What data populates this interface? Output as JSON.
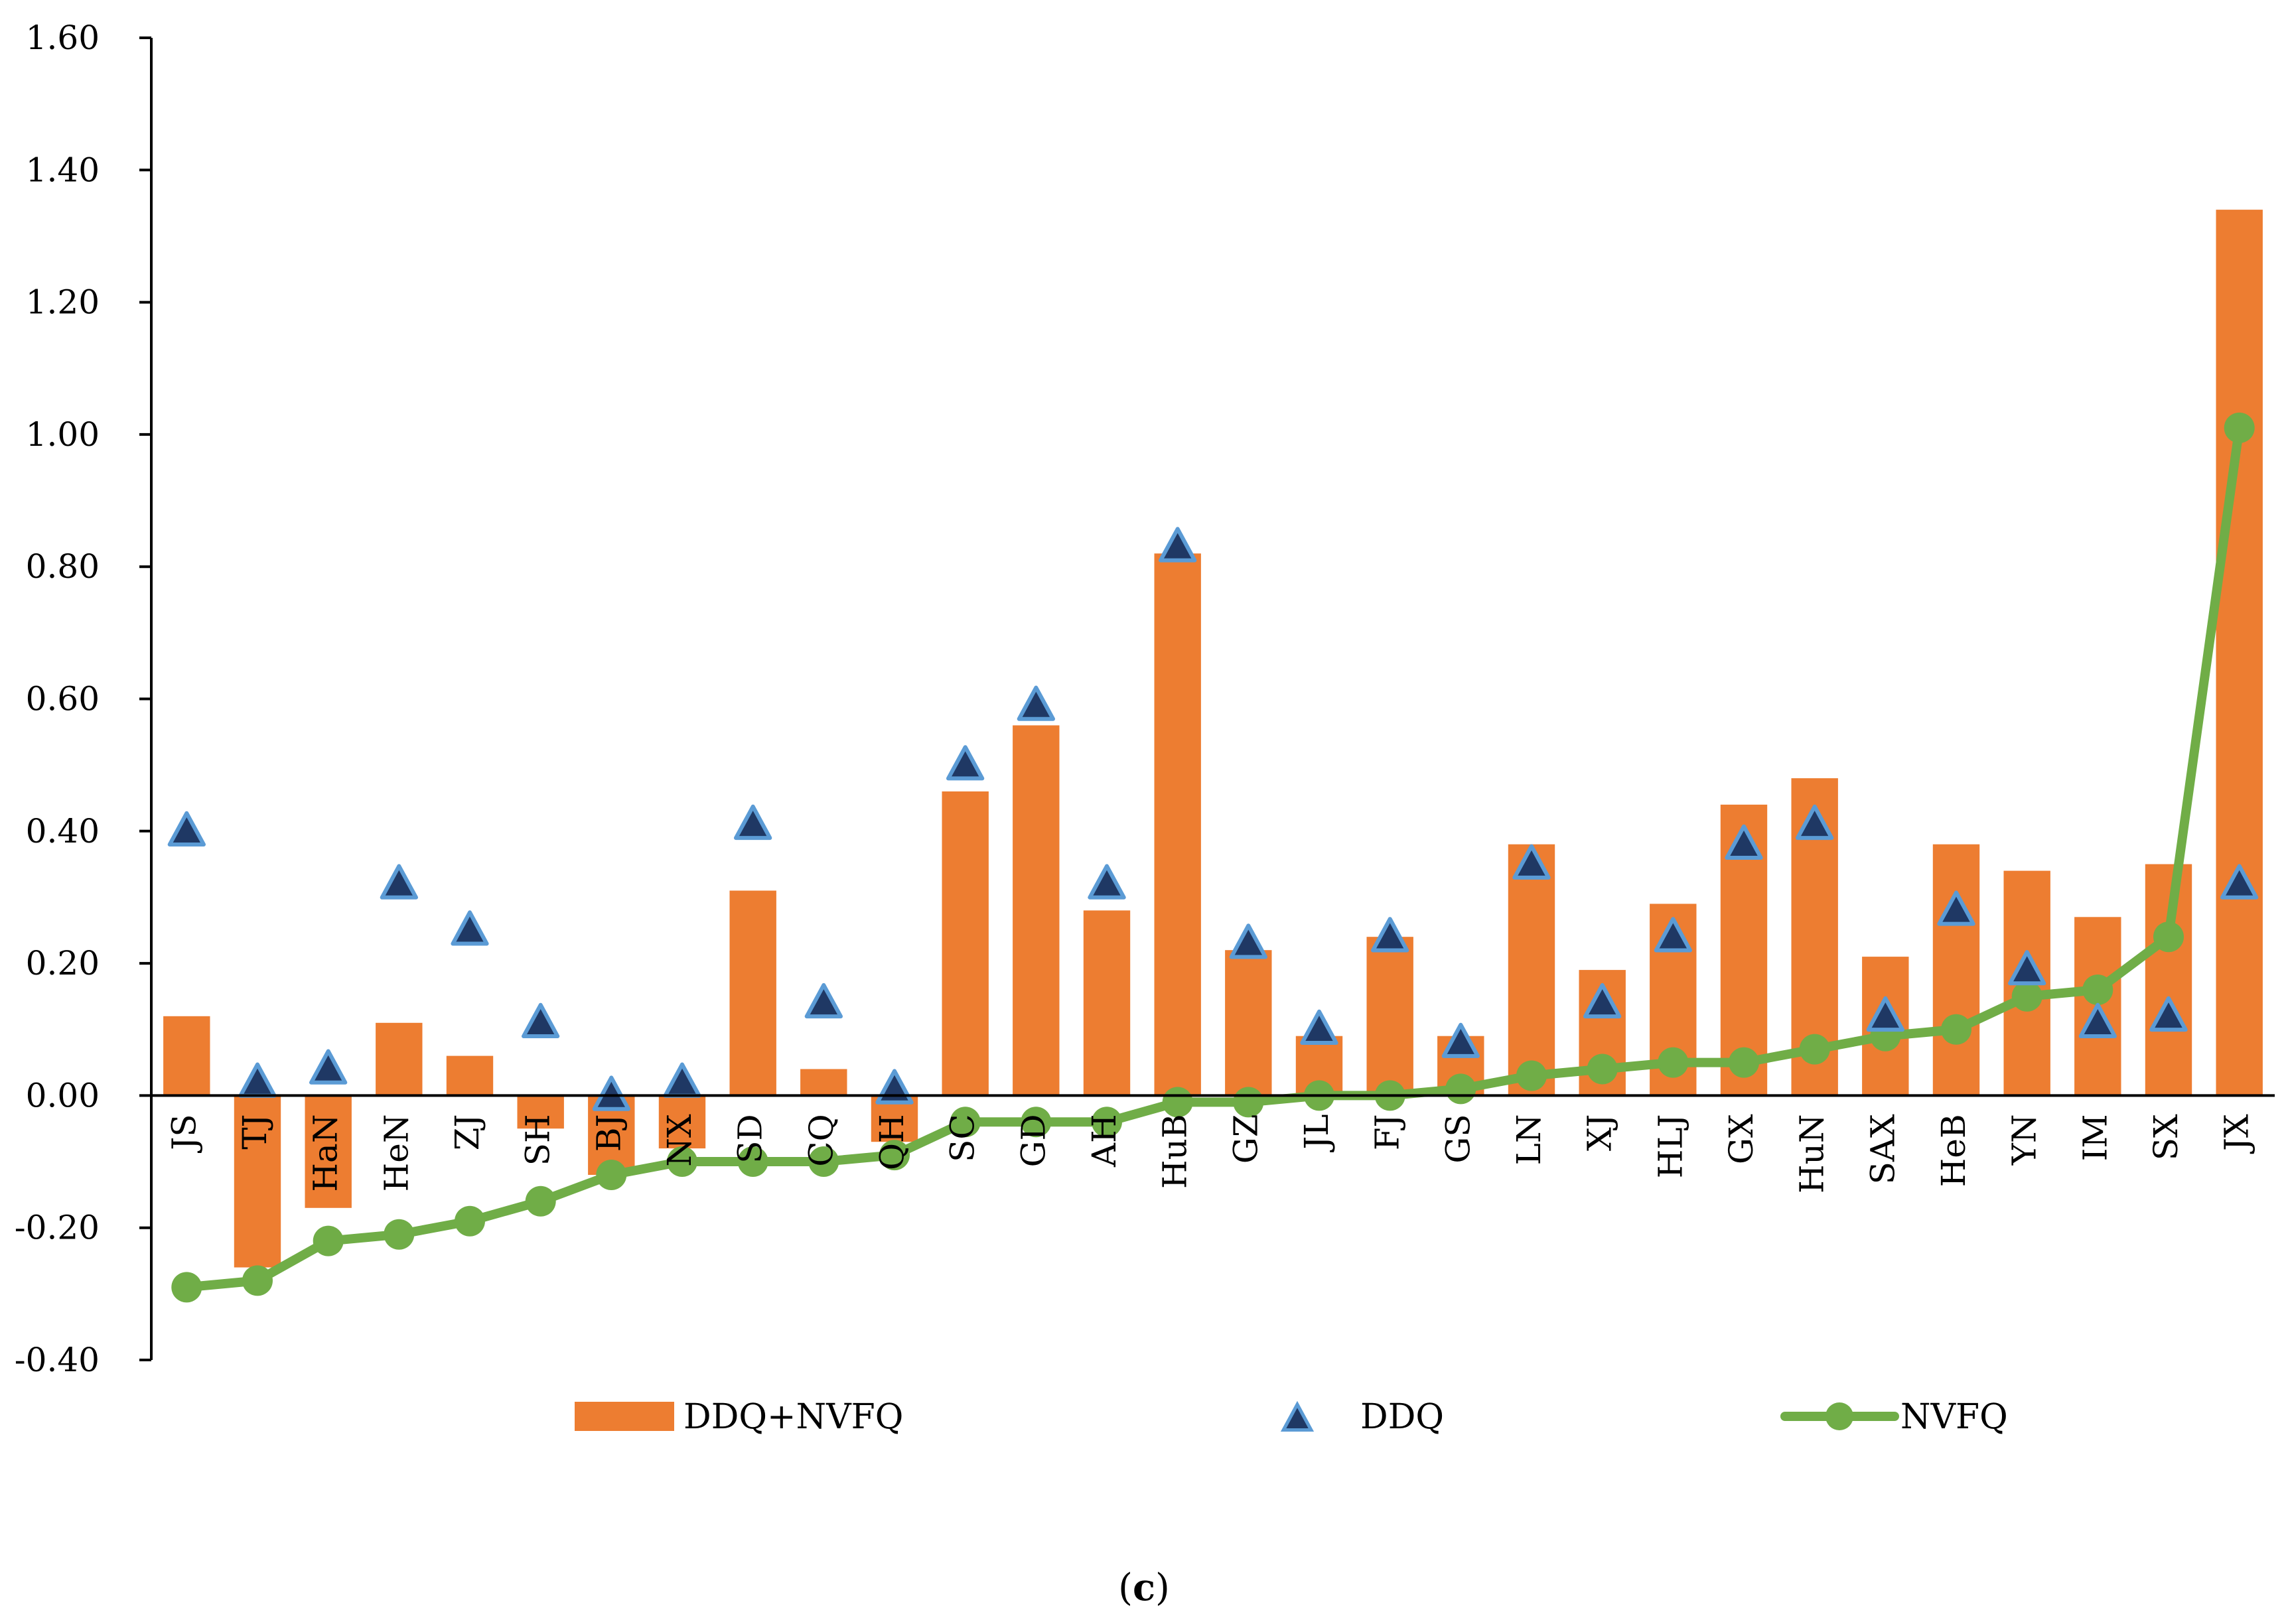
{
  "chart_data": {
    "type": "bar",
    "title": "",
    "xlabel": "",
    "ylabel": "",
    "ylim": [
      -0.4,
      1.6
    ],
    "yticks": [
      "-0.40",
      "-0.20",
      "0.00",
      "0.20",
      "0.40",
      "0.60",
      "0.80",
      "1.00",
      "1.20",
      "1.40",
      "1.60"
    ],
    "ytick_values": [
      -0.4,
      -0.2,
      0,
      0.2,
      0.4,
      0.6,
      0.8,
      1.0,
      1.2,
      1.4,
      1.6
    ],
    "grid": false,
    "legend_position": "bottom",
    "categories": [
      "JS",
      "TJ",
      "HaN",
      "HeN",
      "ZJ",
      "SH",
      "BJ",
      "NX",
      "SD",
      "CQ",
      "QH",
      "SC",
      "GD",
      "AH",
      "HuB",
      "GZ",
      "JL",
      "FJ",
      "GS",
      "LN",
      "XJ",
      "HLJ",
      "GX",
      "HuN",
      "SAX",
      "HeB",
      "YN",
      "IM",
      "SX",
      "JX"
    ],
    "series": [
      {
        "name": "DDQ+NVFQ",
        "kind": "bar",
        "color": "#ED7D31",
        "values": [
          0.12,
          -0.26,
          -0.17,
          0.11,
          0.06,
          -0.05,
          -0.12,
          -0.08,
          0.31,
          0.04,
          -0.07,
          0.46,
          0.56,
          0.28,
          0.82,
          0.22,
          0.09,
          0.24,
          0.09,
          0.38,
          0.19,
          0.29,
          0.44,
          0.48,
          0.21,
          0.38,
          0.34,
          0.27,
          0.35,
          1.34
        ]
      },
      {
        "name": "DDQ",
        "kind": "marker",
        "color": "#1F3864",
        "values": [
          0.4,
          0.02,
          0.04,
          0.32,
          0.25,
          0.11,
          0.0,
          0.02,
          0.41,
          0.14,
          0.01,
          0.5,
          0.59,
          0.32,
          0.83,
          0.23,
          0.1,
          0.24,
          0.08,
          0.35,
          0.14,
          0.24,
          0.38,
          0.41,
          0.12,
          0.28,
          0.19,
          0.11,
          0.12,
          0.32
        ]
      },
      {
        "name": "NVFQ",
        "kind": "line",
        "color": "#70AD47",
        "values": [
          -0.29,
          -0.28,
          -0.22,
          -0.21,
          -0.19,
          -0.16,
          -0.12,
          -0.1,
          -0.1,
          -0.1,
          -0.09,
          -0.04,
          -0.04,
          -0.04,
          -0.01,
          -0.01,
          0.0,
          0.0,
          0.01,
          0.03,
          0.04,
          0.05,
          0.05,
          0.07,
          0.09,
          0.1,
          0.15,
          0.16,
          0.24,
          1.01
        ]
      }
    ],
    "caption": "(c)"
  }
}
